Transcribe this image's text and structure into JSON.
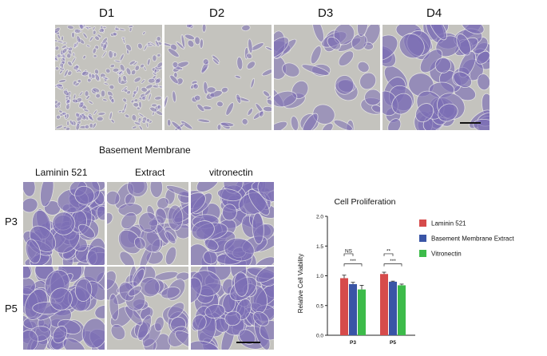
{
  "figure": {
    "day_labels": [
      "D1",
      "D2",
      "D3",
      "D4"
    ],
    "section_title": "Basement Membrane",
    "column_labels": [
      "Laminin 521",
      "Extract",
      "vitronectin"
    ],
    "row_labels": [
      "P3",
      "P5"
    ]
  },
  "colors": {
    "laminin": "#d64b4b",
    "bme": "#3a55a6",
    "vitronectin": "#3dbb4a",
    "stain": "#7d6fb5",
    "background": "#c4c3be"
  },
  "chart_data": {
    "type": "bar",
    "title": "Cell Proliferation",
    "xlabel": "",
    "ylabel": "Relative Cell Viability",
    "categories": [
      "P3",
      "P5"
    ],
    "ylim": [
      0.0,
      2.0
    ],
    "yticks": [
      "0.0",
      "0.5",
      "1.0",
      "1.5",
      "2.0"
    ],
    "grid": false,
    "legend_position": "right",
    "series": [
      {
        "name": "Laminin 521",
        "values": [
          0.96,
          1.03
        ],
        "errors": [
          0.05,
          0.03
        ],
        "color": "#d64b4b"
      },
      {
        "name": "Basement Membrane Extract",
        "values": [
          0.86,
          0.9
        ],
        "errors": [
          0.03,
          0.01
        ],
        "color": "#3a55a6"
      },
      {
        "name": "Vitronectin",
        "values": [
          0.77,
          0.84
        ],
        "errors": [
          0.07,
          0.02
        ],
        "color": "#3dbb4a"
      }
    ],
    "annotations": [
      {
        "category": "P3",
        "pair": [
          0,
          1
        ],
        "text": "NS"
      },
      {
        "category": "P3",
        "pair": [
          0,
          2
        ],
        "text": "***"
      },
      {
        "category": "P5",
        "pair": [
          0,
          1
        ],
        "text": "**"
      },
      {
        "category": "P5",
        "pair": [
          0,
          2
        ],
        "text": "***"
      }
    ]
  }
}
